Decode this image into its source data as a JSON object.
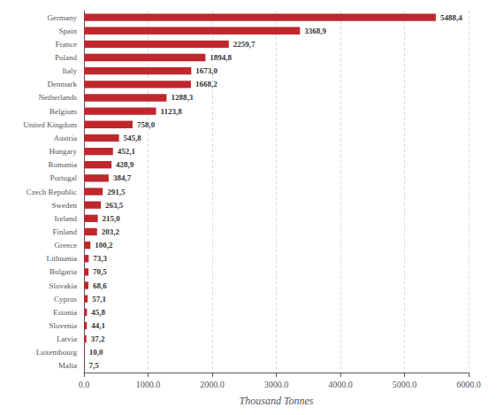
{
  "chart_data": {
    "type": "bar",
    "orientation": "horizontal",
    "xlabel": "Thousand Tonnes",
    "categories": [
      "Germany",
      "Spain",
      "France",
      "Poland",
      "Italy",
      "Denmark",
      "Netherlands",
      "Belgium",
      "United Kingdom",
      "Austria",
      "Hungary",
      "Romania",
      "Portugal",
      "Czech Republic",
      "Sweden",
      "Ireland",
      "Finland",
      "Greece",
      "Lithuania",
      "Bulgaria",
      "Slovakia",
      "Cyprus",
      "Estonia",
      "Slovenia",
      "Latvia",
      "Luxembourg",
      "Malta"
    ],
    "values": [
      5488.4,
      3368.9,
      2259.7,
      1894.8,
      1673.0,
      1668.2,
      1288.3,
      1123.8,
      758.0,
      545.8,
      452.1,
      428.9,
      384.7,
      291.5,
      263.5,
      215.0,
      203.2,
      100.2,
      73.3,
      70.5,
      68.6,
      57.1,
      45.8,
      44.1,
      37.2,
      10.0,
      7.5
    ],
    "value_labels": [
      "5488,4",
      "3368,9",
      "2259,7",
      "1894,8",
      "1673,0",
      "1668,2",
      "1288,3",
      "1123,8",
      "758,0",
      "545,8",
      "452,1",
      "428,9",
      "384,7",
      "291,5",
      "263,5",
      "215,0",
      "203,2",
      "100,2",
      "73,3",
      "70,5",
      "68,6",
      "57,1",
      "45,8",
      "44,1",
      "37,2",
      "10,0",
      "7,5"
    ],
    "data_labels": true,
    "color": "#c0272d",
    "xlim": [
      0,
      6000
    ],
    "xticks": [
      {
        "value": 0,
        "label": "0.0"
      },
      {
        "value": 1000,
        "label": "1000.0"
      },
      {
        "value": 2000,
        "label": "2000.0"
      },
      {
        "value": 3000,
        "label": "3000.0"
      },
      {
        "value": 4000,
        "label": "4000.0"
      },
      {
        "value": 5000,
        "label": "5000.0"
      },
      {
        "value": 6000,
        "label": "6000.0"
      }
    ],
    "grid": true
  }
}
